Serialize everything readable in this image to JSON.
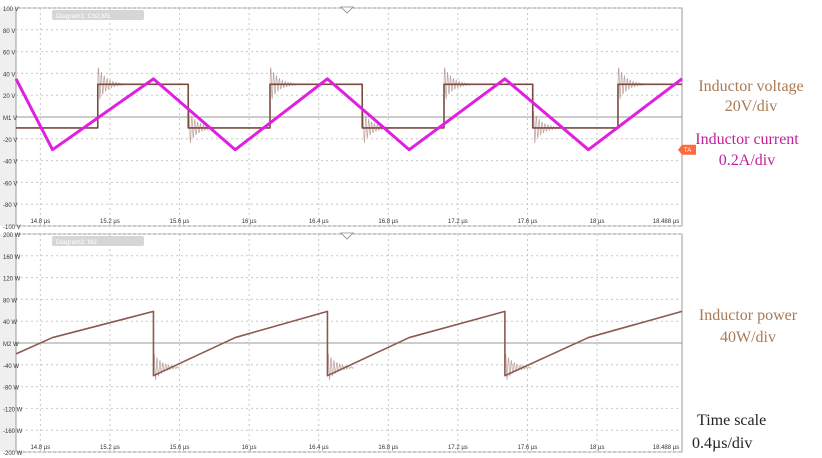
{
  "colors": {
    "voltage": "#7a4a3e",
    "current": "#e020e0",
    "power": "#8a5a4e",
    "ringing": "#b9a09a",
    "grid": "#c8c8c8",
    "frame": "#9a9a9a",
    "label_brown": "#a87a55",
    "label_magenta": "#c0209a",
    "label_black": "#222222"
  },
  "annotations": {
    "voltage_title": "Inductor voltage",
    "voltage_scale": "20V/div",
    "current_title": "Inductor current",
    "current_scale": "0.2A/div",
    "power_title": "Inductor power",
    "power_scale": "40W/div",
    "time_title": "Time scale",
    "time_scale": "0.4µs/div"
  },
  "chart_data": [
    {
      "type": "line",
      "title": "Diagram1: Ch2,M1",
      "xlabel": "",
      "ylabel": "",
      "x_range_us": [
        14.66,
        18.488
      ],
      "ylim": [
        -100,
        100
      ],
      "y_ticks": [
        "100 V",
        "80 V",
        "60 V",
        "40 V",
        "20 V",
        "M1 V",
        "-20 V",
        "-40 V",
        "-60 V",
        "-80 V",
        "-100 V"
      ],
      "x_ticks": [
        "14.8 µs",
        "15.2 µs",
        "15.6 µs",
        "16 µs",
        "16.4 µs",
        "16.8 µs",
        "17.2 µs",
        "17.6 µs",
        "18 µs",
        "18.488 µs"
      ],
      "marker_TA": "TA",
      "grid": true,
      "series": [
        {
          "name": "Inductor voltage",
          "points_us_V": [
            [
              14.66,
              -10
            ],
            [
              15.13,
              -10
            ],
            [
              15.1301,
              30
            ],
            [
              15.65,
              30
            ],
            [
              15.6501,
              -10
            ],
            [
              16.12,
              -10
            ],
            [
              16.1201,
              30
            ],
            [
              16.65,
              30
            ],
            [
              16.6501,
              -10
            ],
            [
              17.12,
              -10
            ],
            [
              17.1201,
              30
            ],
            [
              17.63,
              30
            ],
            [
              17.6301,
              -10
            ],
            [
              18.12,
              -10
            ],
            [
              18.1201,
              30
            ],
            [
              18.488,
              30
            ]
          ],
          "ringing_after_edges_us": [
            15.13,
            15.65,
            16.12,
            16.65,
            17.12,
            17.63,
            18.12
          ]
        },
        {
          "name": "Inductor current",
          "points_us_V": [
            [
              14.66,
              35
            ],
            [
              14.87,
              -30
            ],
            [
              15.45,
              35
            ],
            [
              15.92,
              -30
            ],
            [
              16.45,
              35
            ],
            [
              16.92,
              -30
            ],
            [
              17.47,
              35
            ],
            [
              17.95,
              -30
            ],
            [
              18.488,
              35
            ]
          ]
        }
      ]
    },
    {
      "type": "line",
      "title": "Diagram2: M2",
      "xlabel": "",
      "ylabel": "",
      "x_range_us": [
        14.66,
        18.488
      ],
      "ylim": [
        -200,
        200
      ],
      "y_ticks": [
        "200 W",
        "160 W",
        "120 W",
        "80 W",
        "40 W",
        "M2 W",
        "-40 W",
        "-80 W",
        "-120 W",
        "-160 W",
        "-200 W"
      ],
      "x_ticks": [
        "14.8 µs",
        "15.2 µs",
        "15.6 µs",
        "16 µs",
        "16.4 µs",
        "16.8 µs",
        "17.2 µs",
        "17.6 µs",
        "18 µs",
        "18.488 µs"
      ],
      "grid": true,
      "series": [
        {
          "name": "Inductor power",
          "points_us_W": [
            [
              14.66,
              -20
            ],
            [
              14.87,
              10
            ],
            [
              15.45,
              58
            ],
            [
              15.4501,
              -60
            ],
            [
              15.92,
              10
            ],
            [
              16.45,
              58
            ],
            [
              16.4501,
              -60
            ],
            [
              16.92,
              10
            ],
            [
              17.47,
              58
            ],
            [
              17.4701,
              -60
            ],
            [
              17.95,
              10
            ],
            [
              18.488,
              58
            ]
          ],
          "ringing_after_edges_us": [
            15.45,
            16.45,
            17.47
          ]
        }
      ]
    }
  ]
}
